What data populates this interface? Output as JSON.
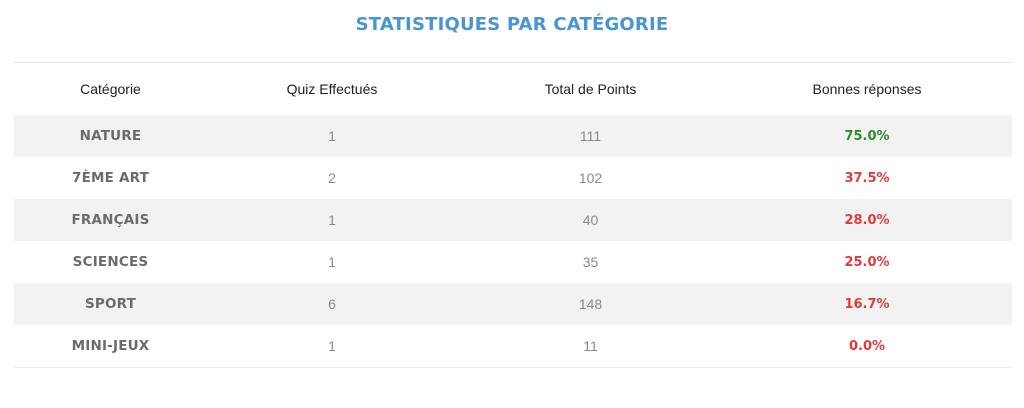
{
  "title": "STATISTIQUES PAR CATÉGORIE",
  "headers": {
    "category": "Catégorie",
    "quizzes": "Quiz Effectués",
    "points": "Total de Points",
    "correct": "Bonnes réponses"
  },
  "rows": [
    {
      "category": "NATURE",
      "quizzes": "1",
      "points": "111",
      "correct": "75.0%",
      "status": "good"
    },
    {
      "category": "7ÈME ART",
      "quizzes": "2",
      "points": "102",
      "correct": "37.5%",
      "status": "bad"
    },
    {
      "category": "FRANÇAIS",
      "quizzes": "1",
      "points": "40",
      "correct": "28.0%",
      "status": "bad"
    },
    {
      "category": "SCIENCES",
      "quizzes": "1",
      "points": "35",
      "correct": "25.0%",
      "status": "bad"
    },
    {
      "category": "SPORT",
      "quizzes": "6",
      "points": "148",
      "correct": "16.7%",
      "status": "bad"
    },
    {
      "category": "MINI-JEUX",
      "quizzes": "1",
      "points": "11",
      "correct": "0.0%",
      "status": "bad"
    }
  ],
  "colors": {
    "title": "#4a94d4",
    "good": "#2e8b2e",
    "bad": "#e03a3a",
    "stripe": "#f2f2f2"
  }
}
